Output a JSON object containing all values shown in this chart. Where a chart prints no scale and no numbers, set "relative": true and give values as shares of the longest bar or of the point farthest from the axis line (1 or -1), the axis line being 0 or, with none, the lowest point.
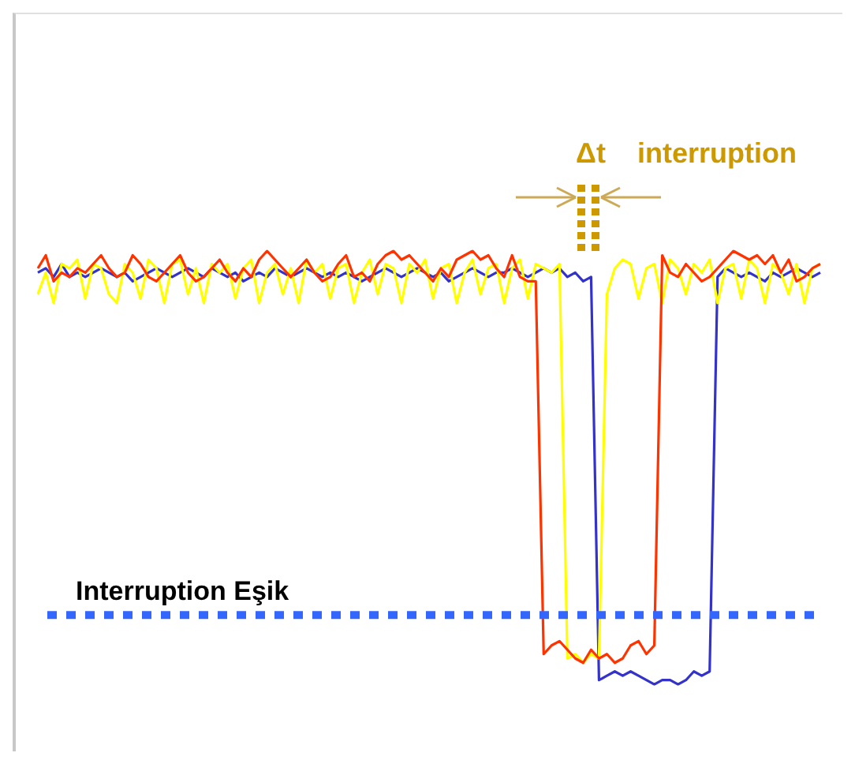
{
  "chart_data": {
    "type": "line",
    "relative": true,
    "legend": false,
    "grid": false,
    "marker": "none",
    "annotations": [
      "Δt",
      "interruption"
    ],
    "ref_lines": [
      {
        "axis": "y",
        "value": 0.16,
        "label": "Interruption Eşik",
        "color": "#3366ff",
        "line_style": "dotted"
      }
    ],
    "categories": [
      null,
      null,
      null,
      null,
      null,
      null,
      null,
      null,
      null,
      null,
      null,
      null,
      null,
      null,
      null,
      null,
      null,
      null,
      null,
      null,
      null,
      null,
      null,
      null,
      null,
      null,
      null,
      null,
      null,
      null,
      null,
      null,
      null,
      null,
      null,
      null,
      null,
      null,
      null,
      null,
      null,
      null,
      null,
      null,
      null,
      null,
      null,
      null,
      null,
      null,
      null,
      null,
      null,
      null,
      null,
      null,
      null,
      null,
      null,
      null,
      null,
      null,
      null,
      null,
      null,
      null,
      null,
      null,
      null,
      null,
      null,
      null,
      null,
      null,
      null,
      null,
      null,
      null,
      null,
      null,
      null,
      null,
      null,
      null,
      null,
      null,
      null,
      null,
      null,
      null,
      null,
      null,
      null,
      null,
      null,
      null,
      null,
      null,
      null,
      null
    ],
    "series": [
      {
        "color": "#ff3300",
        "values": [
          0.96,
          0.99,
          0.93,
          0.95,
          0.94,
          0.96,
          0.95,
          0.97,
          0.99,
          0.96,
          0.94,
          0.95,
          0.99,
          0.97,
          0.94,
          0.93,
          0.95,
          0.97,
          0.99,
          0.95,
          0.93,
          0.94,
          0.96,
          0.98,
          0.95,
          0.93,
          0.96,
          0.94,
          0.98,
          1.0,
          0.98,
          0.96,
          0.94,
          0.96,
          0.98,
          0.95,
          0.93,
          0.94,
          0.97,
          0.99,
          0.94,
          0.95,
          0.93,
          0.97,
          0.99,
          1.0,
          0.98,
          0.99,
          0.97,
          0.95,
          0.93,
          0.96,
          0.94,
          0.98,
          0.99,
          1.0,
          0.98,
          0.99,
          0.96,
          0.94,
          0.99,
          0.94,
          0.93,
          0.93,
          0.07,
          0.09,
          0.1,
          0.08,
          0.06,
          0.05,
          0.08,
          0.06,
          0.07,
          0.05,
          0.06,
          0.09,
          0.1,
          0.07,
          0.09,
          0.99,
          0.95,
          0.94,
          0.97,
          0.95,
          0.93,
          0.94,
          0.96,
          0.98,
          1.0,
          0.99,
          0.98,
          0.99,
          0.97,
          0.99,
          0.95,
          0.98,
          0.93,
          0.94,
          0.96,
          0.97
        ]
      },
      {
        "color": "#ffff00",
        "values": [
          0.9,
          0.95,
          0.88,
          0.97,
          0.96,
          0.98,
          0.89,
          0.97,
          0.96,
          0.9,
          0.88,
          0.97,
          0.95,
          0.89,
          0.98,
          0.96,
          0.88,
          0.97,
          0.98,
          0.9,
          0.96,
          0.88,
          0.97,
          0.95,
          0.97,
          0.89,
          0.96,
          0.98,
          0.88,
          0.95,
          0.97,
          0.9,
          0.96,
          0.88,
          0.98,
          0.95,
          0.97,
          0.89,
          0.96,
          0.97,
          0.88,
          0.95,
          0.98,
          0.9,
          0.97,
          0.96,
          0.88,
          0.97,
          0.95,
          0.98,
          0.89,
          0.96,
          0.97,
          0.88,
          0.95,
          0.98,
          0.9,
          0.96,
          0.97,
          0.88,
          0.96,
          0.98,
          0.89,
          0.97,
          0.96,
          0.95,
          0.97,
          0.06,
          0.07,
          0.05,
          0.07,
          0.06,
          0.9,
          0.96,
          0.98,
          0.97,
          0.89,
          0.96,
          0.97,
          0.88,
          0.98,
          0.96,
          0.9,
          0.97,
          0.95,
          0.98,
          0.88,
          0.96,
          0.97,
          0.89,
          0.98,
          0.96,
          0.88,
          0.97,
          0.95,
          0.9,
          0.97,
          0.88,
          0.96,
          0.97
        ]
      },
      {
        "color": "#3333cc",
        "values": [
          0.95,
          0.96,
          0.94,
          0.97,
          0.94,
          0.95,
          0.94,
          0.95,
          0.96,
          0.95,
          0.94,
          0.95,
          0.93,
          0.94,
          0.95,
          0.96,
          0.95,
          0.94,
          0.95,
          0.96,
          0.95,
          0.94,
          0.96,
          0.95,
          0.94,
          0.95,
          0.93,
          0.94,
          0.95,
          0.94,
          0.96,
          0.95,
          0.94,
          0.95,
          0.96,
          0.95,
          0.94,
          0.95,
          0.94,
          0.95,
          0.94,
          0.93,
          0.94,
          0.95,
          0.96,
          0.95,
          0.94,
          0.95,
          0.96,
          0.95,
          0.94,
          0.95,
          0.93,
          0.94,
          0.95,
          0.96,
          0.95,
          0.94,
          0.95,
          0.95,
          0.96,
          0.95,
          0.94,
          0.95,
          0.96,
          0.95,
          0.96,
          0.94,
          0.95,
          0.93,
          0.94,
          0.01,
          0.02,
          0.03,
          0.02,
          0.03,
          0.02,
          0.01,
          0.0,
          0.01,
          0.01,
          0.0,
          0.01,
          0.03,
          0.02,
          0.03,
          0.94,
          0.96,
          0.95,
          0.94,
          0.95,
          0.94,
          0.93,
          0.95,
          0.94,
          0.95,
          0.96,
          0.95,
          0.94,
          0.95
        ]
      }
    ]
  }
}
